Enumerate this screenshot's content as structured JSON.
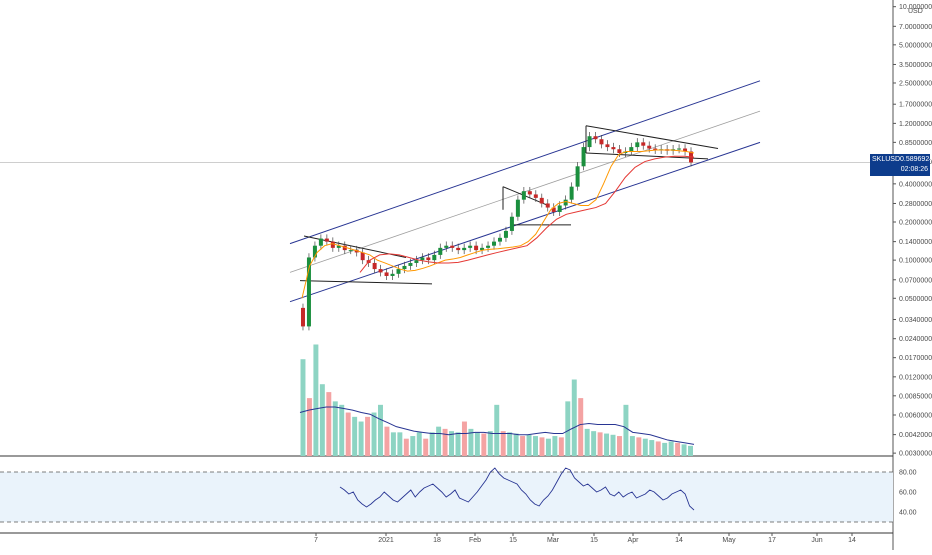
{
  "chart_data": [
    {
      "type": "candlestick",
      "symbol": "SKLUSD",
      "currency": "USD",
      "scale": "log",
      "last_price": "0.58969246",
      "countdown": "02:08:26",
      "y_ticks": [
        "10.00000000",
        "7.00000000",
        "5.00000000",
        "3.50000000",
        "2.50000000",
        "1.70000000",
        "1.20000000",
        "0.85000000",
        "0.60000000",
        "0.40000000",
        "0.28000000",
        "0.20000000",
        "0.14000000",
        "0.10000000",
        "0.07000000",
        "0.05000000",
        "0.03400000",
        "0.02400000",
        "0.01700000",
        "0.01200000",
        "0.00850000",
        "0.00600000",
        "0.00420000",
        "0.00300000"
      ],
      "x_ticks": [
        "7",
        "2021",
        "18",
        "Feb",
        "15",
        "Mar",
        "15",
        "Apr",
        "14",
        "May",
        "17",
        "Jun",
        "14"
      ],
      "ylim": [
        0.0029,
        10.5
      ],
      "series": [
        {
          "role": "price",
          "values": [
            0.03,
            0.105,
            0.13,
            0.148,
            0.14,
            0.125,
            0.13,
            0.12,
            0.12,
            0.115,
            0.1,
            0.095,
            0.085,
            0.08,
            0.075,
            0.078,
            0.085,
            0.09,
            0.095,
            0.1,
            0.105,
            0.1,
            0.11,
            0.125,
            0.13,
            0.125,
            0.12,
            0.125,
            0.13,
            0.12,
            0.125,
            0.13,
            0.14,
            0.15,
            0.17,
            0.22,
            0.3,
            0.35,
            0.33,
            0.31,
            0.28,
            0.26,
            0.24,
            0.27,
            0.3,
            0.38,
            0.55,
            0.78,
            0.95,
            0.9,
            0.82,
            0.78,
            0.75,
            0.7,
            0.72,
            0.78,
            0.85,
            0.8,
            0.76,
            0.74,
            0.75,
            0.73,
            0.75,
            0.76,
            0.72,
            0.59
          ]
        },
        {
          "role": "ema_fast",
          "values": [
            0.05,
            0.09,
            0.115,
            0.13,
            0.135,
            0.13,
            0.125,
            0.12,
            0.115,
            0.11,
            0.1,
            0.095,
            0.09,
            0.085,
            0.082,
            0.083,
            0.086,
            0.09,
            0.095,
            0.1,
            0.102,
            0.105,
            0.11,
            0.115,
            0.12,
            0.122,
            0.123,
            0.125,
            0.127,
            0.13,
            0.14,
            0.16,
            0.2,
            0.25,
            0.28,
            0.29,
            0.28,
            0.27,
            0.27,
            0.3,
            0.4,
            0.55,
            0.68,
            0.72,
            0.72,
            0.72,
            0.73,
            0.74,
            0.74,
            0.74,
            0.73,
            0.72,
            0.7
          ]
        },
        {
          "role": "ema_slow",
          "values": [
            0.08,
            0.1,
            0.11,
            0.112,
            0.11,
            0.105,
            0.1,
            0.097,
            0.095,
            0.095,
            0.096,
            0.1,
            0.105,
            0.11,
            0.115,
            0.12,
            0.125,
            0.13,
            0.15,
            0.18,
            0.21,
            0.23,
            0.24,
            0.25,
            0.26,
            0.28,
            0.35,
            0.45,
            0.54,
            0.6,
            0.63,
            0.65,
            0.66,
            0.66,
            0.65
          ]
        },
        {
          "role": "volume",
          "values": [
            0.0175,
            0.0085,
            0.023,
            0.011,
            0.0095,
            0.008,
            0.0075,
            0.0065,
            0.006,
            0.0055,
            0.006,
            0.0065,
            0.0075,
            0.005,
            0.0045,
            0.0045,
            0.004,
            0.0042,
            0.0045,
            0.004,
            0.0045,
            0.005,
            0.0048,
            0.0046,
            0.0045,
            0.0055,
            0.0048,
            0.0045,
            0.0044,
            0.0046,
            0.0075,
            0.0046,
            0.0045,
            0.0044,
            0.0042,
            0.0043,
            0.0042,
            0.0041,
            0.004,
            0.0042,
            0.0041,
            0.008,
            0.012,
            0.0085,
            0.0048,
            0.0046,
            0.0045,
            0.0044,
            0.0043,
            0.0042,
            0.0075,
            0.0042,
            0.0041,
            0.004,
            0.0039,
            0.0038,
            0.0037,
            0.0038,
            0.0037,
            0.0036,
            0.0035
          ]
        },
        {
          "role": "volume_ma",
          "values": [
            0.0065,
            0.0068,
            0.007,
            0.0072,
            0.0072,
            0.007,
            0.0068,
            0.0065,
            0.0063,
            0.0058,
            0.0054,
            0.005,
            0.0048,
            0.0046,
            0.0045,
            0.0044,
            0.0044,
            0.0043,
            0.0044,
            0.0044,
            0.0045,
            0.0045,
            0.0044,
            0.0044,
            0.0044,
            0.0043,
            0.0043,
            0.0044,
            0.0045,
            0.0044,
            0.0044,
            0.0048,
            0.0052,
            0.0053,
            0.0052,
            0.0052,
            0.0052,
            0.005,
            0.0045,
            0.0044,
            0.0043,
            0.0041,
            0.0039,
            0.0038,
            0.0037,
            0.0036
          ]
        },
        {
          "role": "rsi",
          "ylim": [
            20,
            90
          ],
          "y_ticks": [
            "80.00",
            "60.00",
            "40.00"
          ],
          "values": [
            65,
            62,
            58,
            60,
            52,
            48,
            45,
            48,
            52,
            55,
            60,
            56,
            52,
            50,
            54,
            58,
            62,
            55,
            60,
            64,
            66,
            68,
            64,
            60,
            55,
            58,
            62,
            54,
            52,
            50,
            55,
            60,
            66,
            72,
            80,
            84,
            78,
            74,
            72,
            70,
            68,
            62,
            58,
            52,
            48,
            46,
            52,
            56,
            62,
            70,
            78,
            84,
            82,
            74,
            70,
            66,
            68,
            64,
            60,
            62,
            65,
            58,
            56,
            60,
            55,
            58,
            60,
            54,
            56,
            58,
            62,
            60,
            56,
            52,
            54,
            58,
            60,
            62,
            58,
            46,
            42
          ]
        }
      ]
    }
  ],
  "colors": {
    "up": "#26a69a",
    "down": "#ef5350",
    "price_body_up": "#1b8f3e",
    "price_body_down": "#c62828",
    "ema_fast": "#ff9800",
    "ema_slow": "#e53935",
    "channel": "#283593",
    "channel_mid": "#9e9e9e",
    "pattern": "#212121",
    "volume_ma": "#283593",
    "rsi_line": "#283593",
    "rsi_band": "#eaf3fb",
    "label_bg": "#0d3c8c"
  }
}
